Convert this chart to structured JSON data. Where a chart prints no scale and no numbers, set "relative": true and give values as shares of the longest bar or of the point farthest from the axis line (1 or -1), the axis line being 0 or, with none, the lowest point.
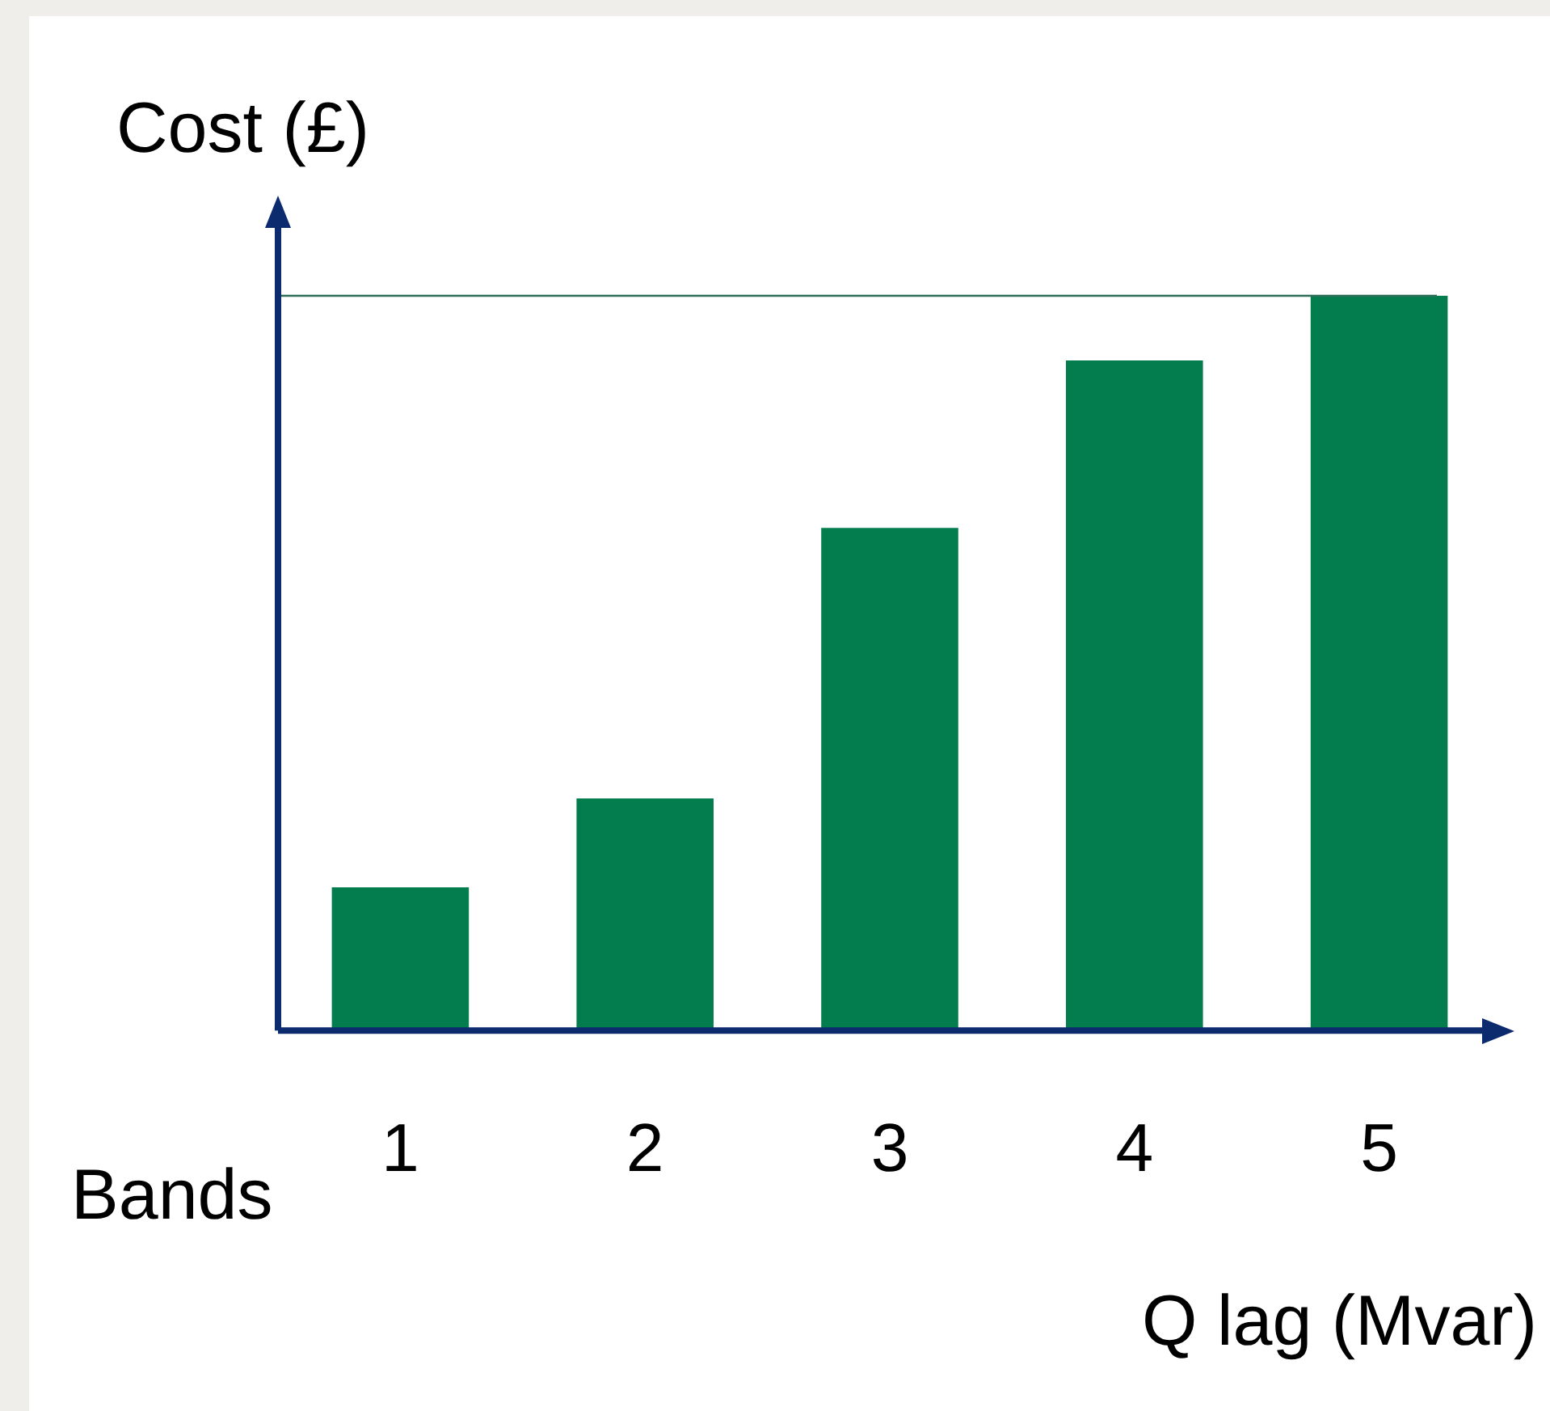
{
  "chart_data": {
    "type": "bar",
    "ylabel": "Cost (£)",
    "xlabel": "Q lag (Mvar)",
    "annotations": [
      "Bands"
    ],
    "categories": [
      "1",
      "2",
      "3",
      "4",
      "5"
    ],
    "values": [
      0.195,
      0.316,
      0.684,
      0.912,
      1
    ],
    "color": "#037c4e",
    "relative": true,
    "ref_lines": [
      {
        "axis": "y",
        "value": 1,
        "color": "#2f6f5a"
      }
    ],
    "grid": false,
    "legend": false
  }
}
